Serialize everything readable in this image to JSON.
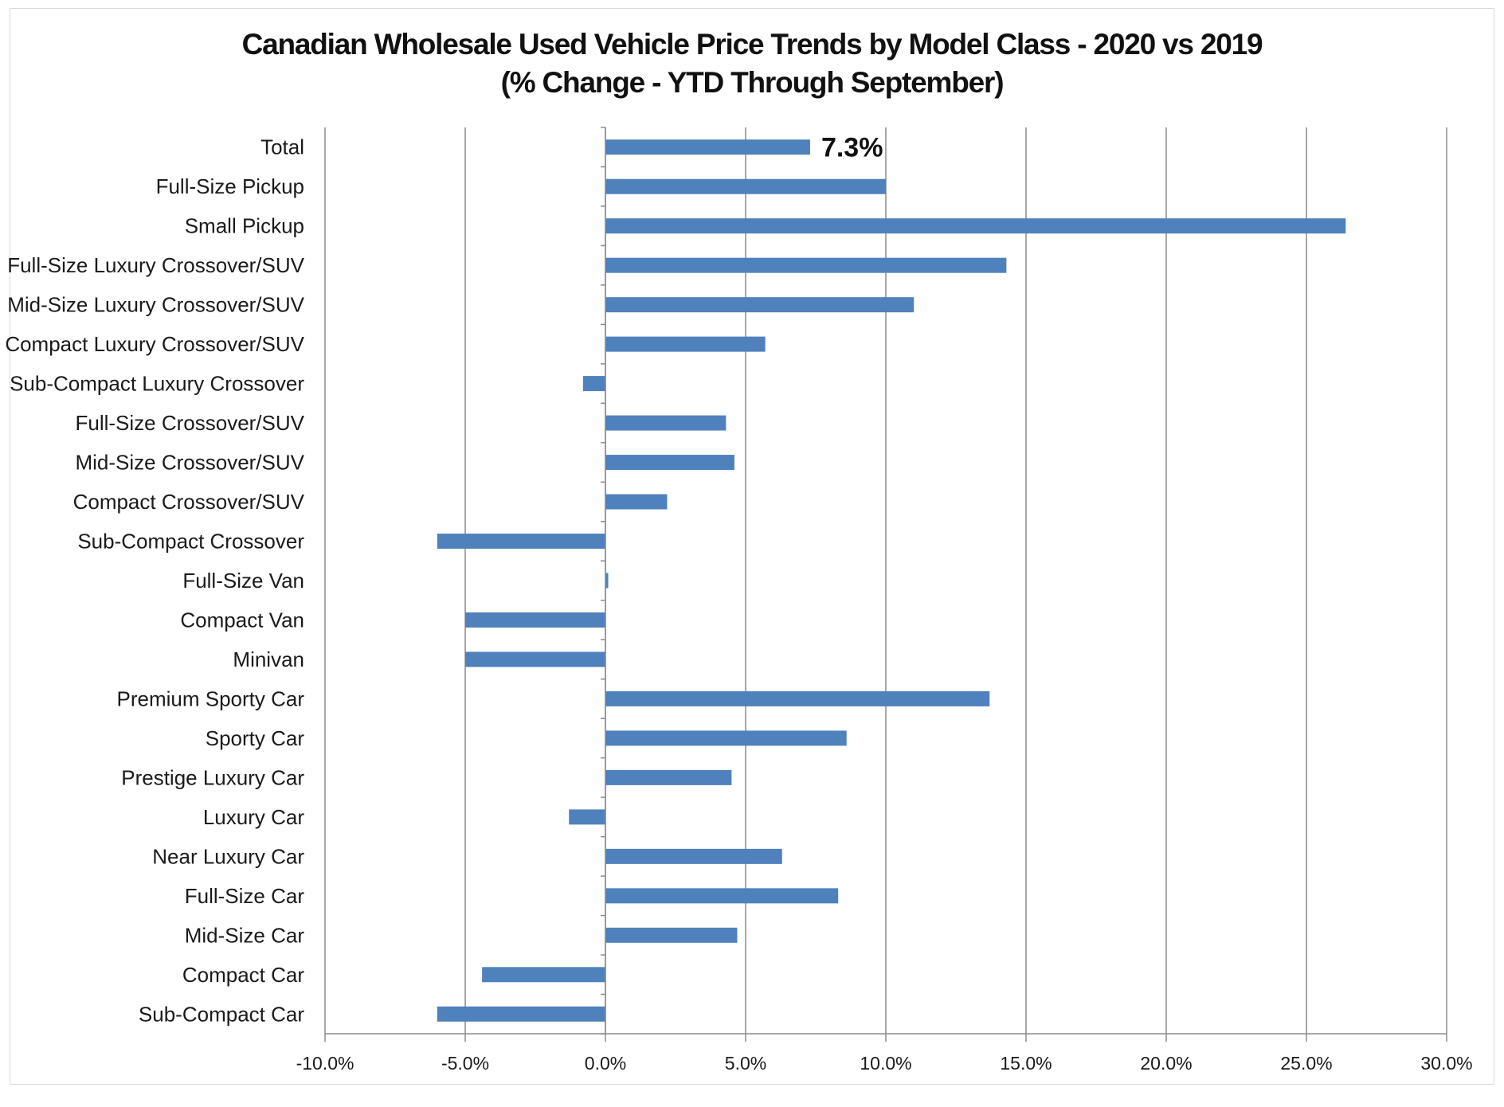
{
  "chart_data": {
    "type": "bar",
    "orientation": "horizontal",
    "title": "Canadian Wholesale Used Vehicle Price Trends by Model Class - 2020 vs 2019",
    "subtitle": "(% Change - YTD Through September)",
    "categories": [
      "Total",
      "Full-Size Pickup",
      "Small Pickup",
      "Full-Size Luxury Crossover/SUV",
      "Mid-Size Luxury Crossover/SUV",
      "Compact Luxury Crossover/SUV",
      "Sub-Compact Luxury Crossover",
      "Full-Size Crossover/SUV",
      "Mid-Size Crossover/SUV",
      "Compact Crossover/SUV",
      "Sub-Compact Crossover",
      "Full-Size Van",
      "Compact Van",
      "Minivan",
      "Premium Sporty Car",
      "Sporty Car",
      "Prestige Luxury Car",
      "Luxury Car",
      "Near Luxury Car",
      "Full-Size Car",
      "Mid-Size Car",
      "Compact Car",
      "Sub-Compact Car"
    ],
    "values": [
      7.3,
      10.0,
      26.4,
      14.3,
      11.0,
      5.7,
      -0.8,
      4.3,
      4.6,
      2.2,
      -6.0,
      0.1,
      -5.0,
      -5.0,
      13.7,
      8.6,
      4.5,
      -1.3,
      6.3,
      8.3,
      4.7,
      -4.4,
      -6.0
    ],
    "data_labels": [
      {
        "category": "Total",
        "text": "7.3%"
      }
    ],
    "xlim": [
      -10,
      30
    ],
    "xticks": [
      "-10.0%",
      "-5.0%",
      "0.0%",
      "5.0%",
      "10.0%",
      "15.0%",
      "20.0%",
      "25.0%",
      "30.0%"
    ],
    "tick_step": 5,
    "grid": "vertical",
    "bar_color": "#4f81bd",
    "grid_color": "#8c8c8c",
    "legend": "none"
  }
}
